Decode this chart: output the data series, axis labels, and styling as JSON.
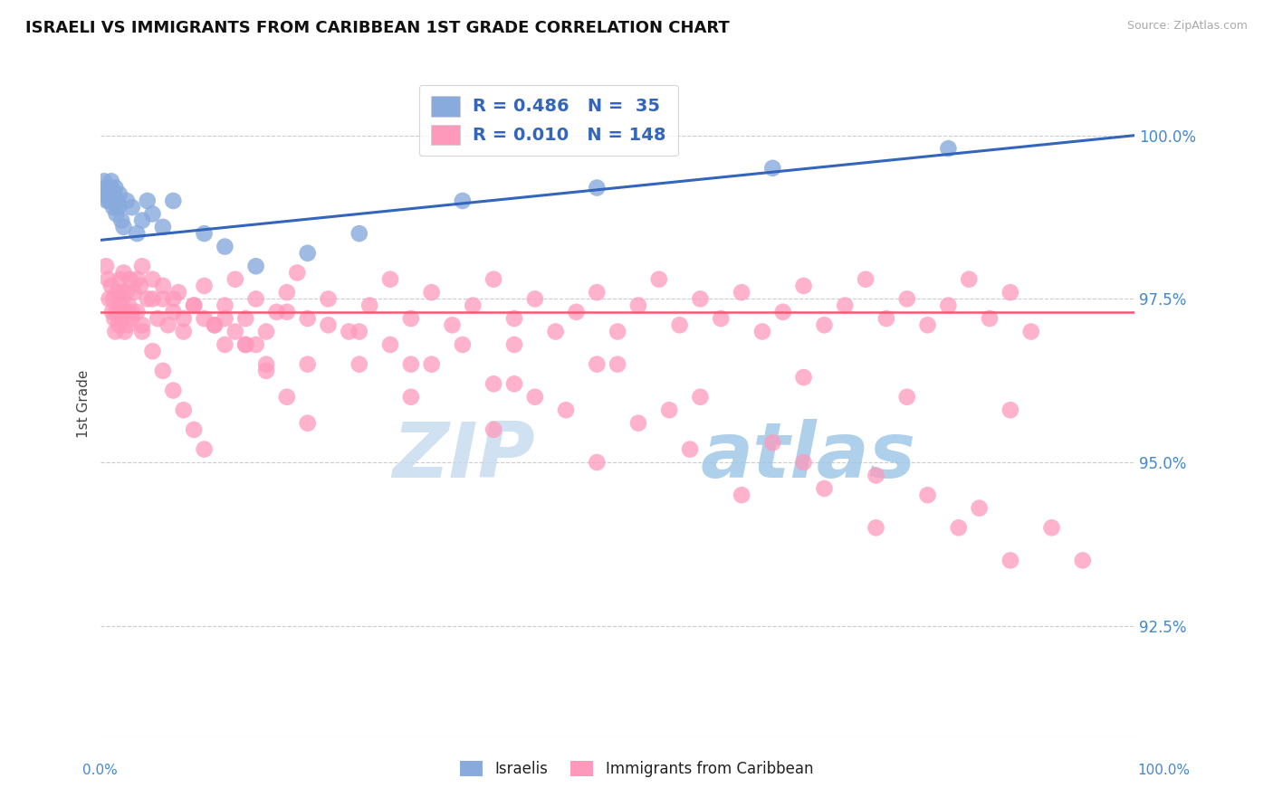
{
  "title": "ISRAELI VS IMMIGRANTS FROM CARIBBEAN 1ST GRADE CORRELATION CHART",
  "source": "Source: ZipAtlas.com",
  "ylabel": "1st Grade",
  "xlim": [
    0.0,
    100.0
  ],
  "ylim": [
    90.8,
    101.0
  ],
  "yticks": [
    92.5,
    95.0,
    97.5,
    100.0
  ],
  "ytick_labels": [
    "92.5%",
    "95.0%",
    "97.5%",
    "100.0%"
  ],
  "blue_color": "#88AADD",
  "pink_color": "#FF99BB",
  "trend_blue_color": "#3366BB",
  "trend_pink_color": "#FF5577",
  "R_blue": 0.486,
  "N_blue": 35,
  "R_pink": 0.01,
  "N_pink": 148,
  "legend_label_blue": "Israelis",
  "legend_label_pink": "Immigrants from Caribbean",
  "watermark_zip": "ZIP",
  "watermark_atlas": "atlas",
  "blue_x": [
    0.3,
    0.4,
    0.5,
    0.6,
    0.7,
    0.8,
    0.9,
    1.0,
    1.1,
    1.2,
    1.3,
    1.4,
    1.5,
    1.6,
    1.7,
    1.8,
    2.0,
    2.2,
    2.5,
    3.0,
    3.5,
    4.0,
    4.5,
    5.0,
    6.0,
    7.0,
    10.0,
    12.0,
    15.0,
    20.0,
    25.0,
    35.0,
    48.0,
    65.0,
    82.0
  ],
  "blue_y": [
    99.3,
    99.2,
    99.1,
    99.0,
    99.1,
    99.0,
    99.2,
    99.3,
    99.0,
    98.9,
    99.1,
    99.2,
    98.8,
    99.0,
    98.9,
    99.1,
    98.7,
    98.6,
    99.0,
    98.9,
    98.5,
    98.7,
    99.0,
    98.8,
    98.6,
    99.0,
    98.5,
    98.3,
    98.0,
    98.2,
    98.5,
    99.0,
    99.2,
    99.5,
    99.8
  ],
  "pink_x": [
    0.5,
    0.7,
    0.8,
    1.0,
    1.1,
    1.2,
    1.3,
    1.4,
    1.5,
    1.6,
    1.7,
    1.8,
    1.9,
    2.0,
    2.1,
    2.2,
    2.3,
    2.4,
    2.5,
    2.6,
    2.7,
    2.8,
    3.0,
    3.2,
    3.5,
    3.8,
    4.0,
    4.5,
    5.0,
    5.5,
    6.0,
    6.5,
    7.0,
    7.5,
    8.0,
    9.0,
    10.0,
    11.0,
    12.0,
    13.0,
    14.0,
    15.0,
    16.0,
    17.0,
    18.0,
    19.0,
    20.0,
    22.0,
    24.0,
    26.0,
    28.0,
    30.0,
    32.0,
    34.0,
    36.0,
    38.0,
    40.0,
    42.0,
    44.0,
    46.0,
    48.0,
    50.0,
    52.0,
    54.0,
    56.0,
    58.0,
    60.0,
    62.0,
    64.0,
    66.0,
    68.0,
    70.0,
    72.0,
    74.0,
    76.0,
    78.0,
    80.0,
    82.0,
    84.0,
    86.0,
    88.0,
    90.0,
    18.0,
    25.0,
    35.0,
    22.0,
    30.0,
    40.0,
    50.0,
    10.0,
    15.0,
    20.0,
    28.0,
    38.0,
    48.0,
    58.0,
    68.0,
    78.0,
    88.0,
    5.0,
    8.0,
    12.0,
    16.0,
    4.0,
    6.0,
    9.0,
    13.0,
    3.5,
    7.0,
    11.0,
    14.0,
    2.0,
    3.0,
    4.0,
    5.0,
    6.0,
    7.0,
    8.0,
    9.0,
    10.0,
    12.0,
    14.0,
    16.0,
    18.0,
    20.0,
    25.0,
    30.0,
    38.0,
    48.0,
    62.0,
    75.0,
    88.0,
    55.0,
    65.0,
    75.0,
    85.0,
    40.0,
    52.0,
    68.0,
    80.0,
    92.0,
    45.0,
    57.0,
    70.0,
    83.0,
    95.0,
    32.0,
    42.0
  ],
  "pink_y": [
    98.0,
    97.8,
    97.5,
    97.7,
    97.3,
    97.5,
    97.2,
    97.0,
    97.3,
    97.6,
    97.1,
    97.4,
    97.8,
    97.2,
    97.5,
    97.9,
    97.0,
    97.3,
    97.6,
    97.1,
    97.4,
    97.8,
    97.2,
    97.6,
    97.3,
    97.7,
    97.1,
    97.5,
    97.8,
    97.2,
    97.5,
    97.1,
    97.3,
    97.6,
    97.0,
    97.4,
    97.7,
    97.1,
    97.4,
    97.8,
    97.2,
    97.5,
    97.0,
    97.3,
    97.6,
    97.9,
    97.2,
    97.5,
    97.0,
    97.4,
    97.8,
    97.2,
    97.6,
    97.1,
    97.4,
    97.8,
    97.2,
    97.5,
    97.0,
    97.3,
    97.6,
    97.0,
    97.4,
    97.8,
    97.1,
    97.5,
    97.2,
    97.6,
    97.0,
    97.3,
    97.7,
    97.1,
    97.4,
    97.8,
    97.2,
    97.5,
    97.1,
    97.4,
    97.8,
    97.2,
    97.6,
    97.0,
    97.3,
    97.0,
    96.8,
    97.1,
    96.5,
    96.8,
    96.5,
    97.2,
    96.8,
    96.5,
    96.8,
    96.2,
    96.5,
    96.0,
    96.3,
    96.0,
    95.8,
    97.5,
    97.2,
    96.8,
    96.5,
    98.0,
    97.7,
    97.4,
    97.0,
    97.8,
    97.5,
    97.1,
    96.8,
    97.6,
    97.3,
    97.0,
    96.7,
    96.4,
    96.1,
    95.8,
    95.5,
    95.2,
    97.2,
    96.8,
    96.4,
    96.0,
    95.6,
    96.5,
    96.0,
    95.5,
    95.0,
    94.5,
    94.0,
    93.5,
    95.8,
    95.3,
    94.8,
    94.3,
    96.2,
    95.6,
    95.0,
    94.5,
    94.0,
    95.8,
    95.2,
    94.6,
    94.0,
    93.5,
    96.5,
    96.0
  ]
}
